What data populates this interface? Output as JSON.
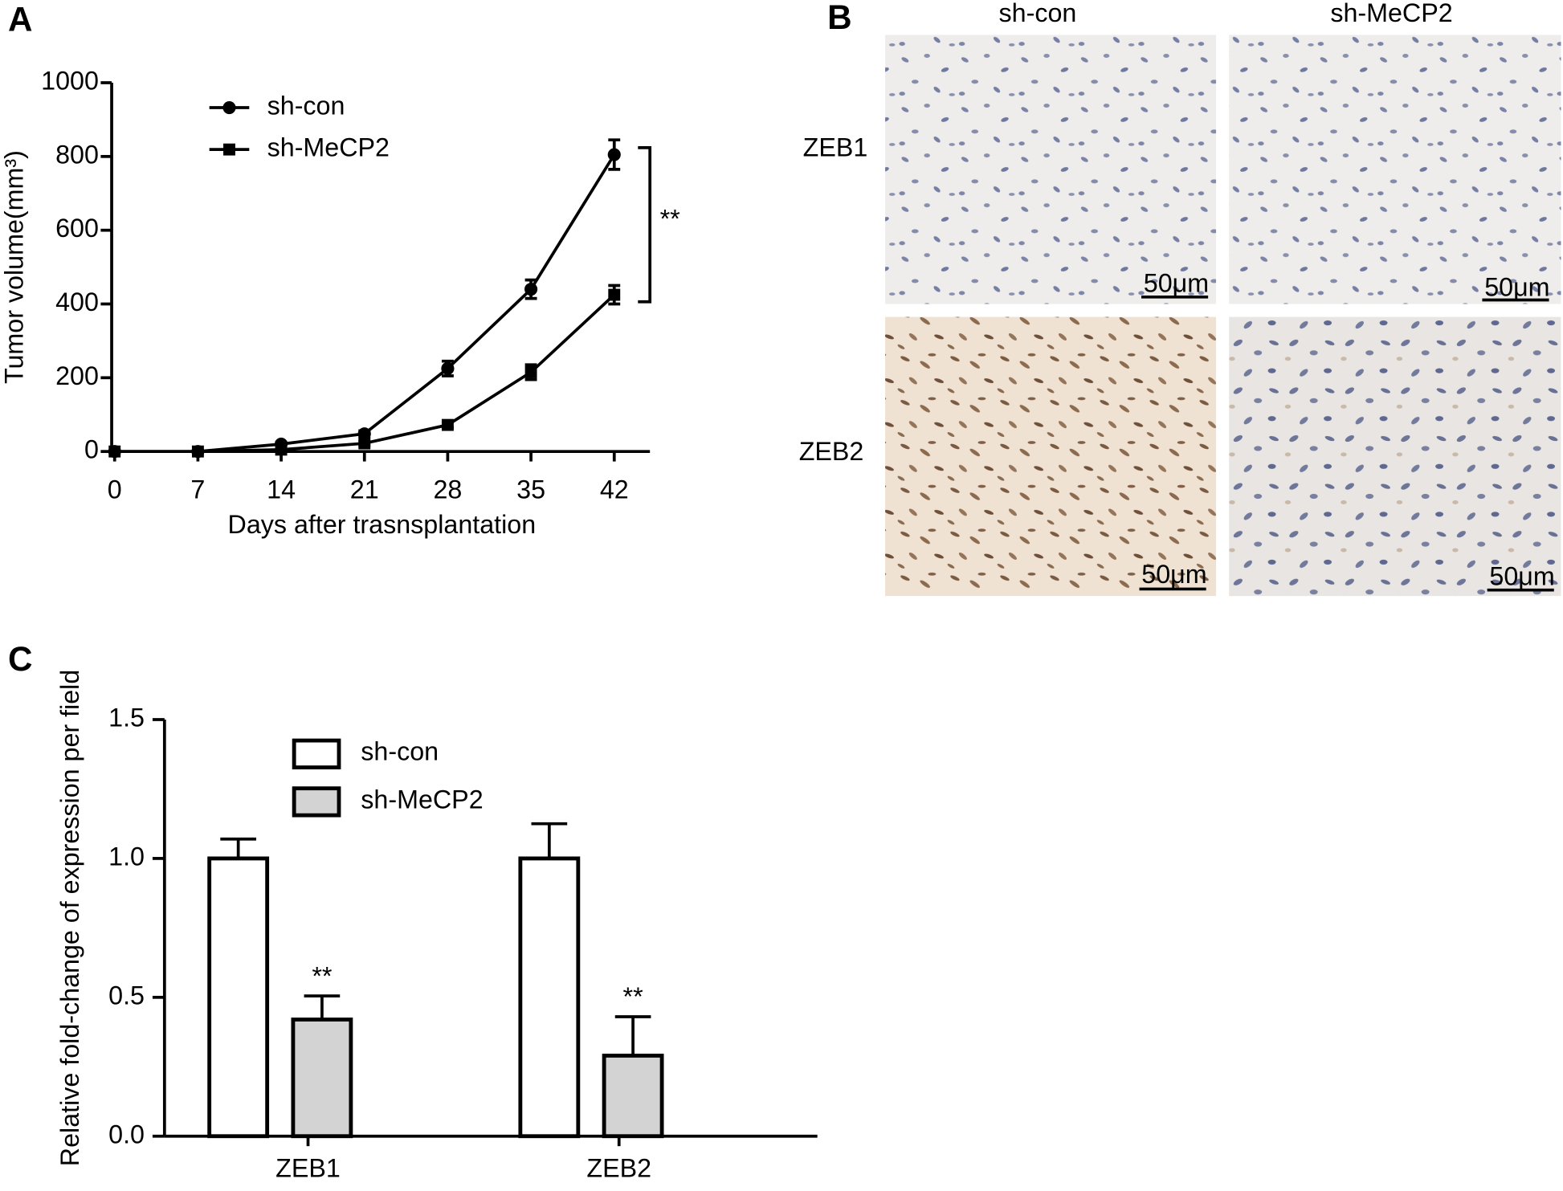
{
  "chart_data": [
    {
      "type": "line",
      "panel_label": "A",
      "xlabel": "Days after trasnsplantation",
      "ylabel": "Tumor volume(mm³)",
      "x": [
        0,
        7,
        14,
        21,
        28,
        35,
        42
      ],
      "series": [
        {
          "name": "sh-con",
          "color": "#000000",
          "marker": "circle",
          "values": [
            0,
            0,
            20,
            48,
            225,
            440,
            805
          ],
          "errors": [
            0,
            0,
            5,
            8,
            20,
            25,
            40
          ]
        },
        {
          "name": "sh-MeCP2",
          "color": "#000000",
          "marker": "square",
          "values": [
            0,
            0,
            5,
            22,
            72,
            215,
            425
          ],
          "errors": [
            0,
            0,
            3,
            5,
            8,
            20,
            25
          ]
        }
      ],
      "xlim": [
        -0.5,
        45
      ],
      "xticks": [
        0,
        7,
        14,
        21,
        28,
        35,
        42
      ],
      "ylim": [
        0,
        1000
      ],
      "yticks": [
        0,
        200,
        400,
        600,
        800,
        1000
      ],
      "legend": "upper left",
      "annotation": "**"
    },
    {
      "type": "bar",
      "panel_label": "C",
      "ylabel": "Relative fold-change of expression per field",
      "categories": [
        "ZEB1",
        "ZEB2"
      ],
      "series": [
        {
          "name": "sh-con",
          "color": "#ffffff",
          "values": [
            1.0,
            1.0
          ],
          "errors": [
            0.07,
            0.125
          ]
        },
        {
          "name": "sh-MeCP2",
          "color": "#d3d3d3",
          "values": [
            0.42,
            0.29
          ],
          "errors": [
            0.085,
            0.14
          ],
          "significance": [
            "**",
            "**"
          ]
        }
      ],
      "ylim": [
        0,
        1.5
      ],
      "yticks": [
        {
          "value": 0,
          "label": "0.0"
        },
        0.5,
        {
          "value": 1,
          "label": "1.0"
        },
        1.5
      ],
      "legend": "upper left"
    }
  ],
  "image_panel": {
    "panel_label": "B",
    "columns": [
      "sh-con",
      "sh-MeCP2"
    ],
    "rows": [
      "ZEB1",
      "ZEB2"
    ],
    "scale_bar": "50μm"
  }
}
